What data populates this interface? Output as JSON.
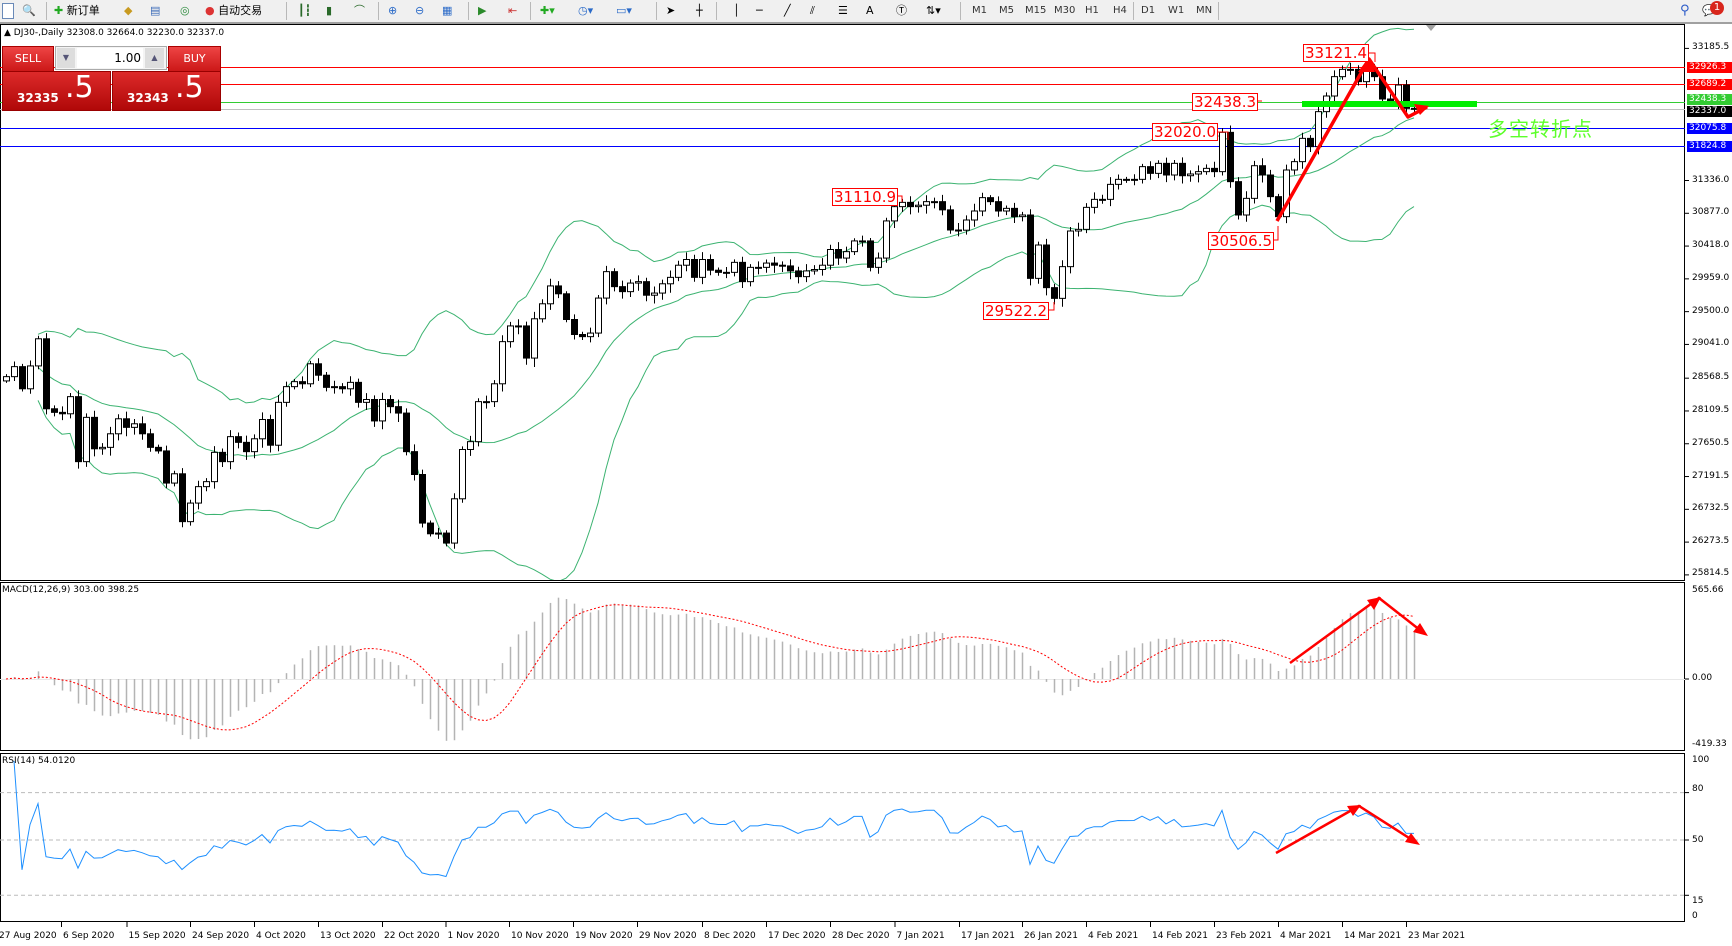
{
  "toolbar": {
    "new_order": "新订单",
    "auto_trade": "自动交易",
    "timeframes": [
      "M1",
      "M5",
      "M15",
      "M30",
      "H1",
      "H4",
      "D1",
      "W1",
      "MN"
    ],
    "notification_count": "1"
  },
  "chart_header": {
    "symbol": "DJ30-,Daily",
    "ohlc": "32308.0 32664.0 32230.0 32337.0"
  },
  "trade_panel": {
    "sell_label": "SELL",
    "buy_label": "BUY",
    "lot": "1.00",
    "sell_price_main": "32335",
    "sell_price_frac": ".5",
    "buy_price_main": "32343",
    "buy_price_frac": ".5"
  },
  "annotation_text": "多空转折点",
  "colors": {
    "bollinger": "#3cb371",
    "rsi": "#1e90ff",
    "macd_signal": "#ff0000",
    "macd_hist": "#b4b4b4",
    "arrow": "#ff0000",
    "pivot_bar": "#00ee00",
    "annotation": "#5cff2a"
  },
  "chart_data": {
    "type": "candlestick",
    "symbol": "DJ30-",
    "timeframe": "Daily",
    "ylim": [
      25814.5,
      33185.5
    ],
    "closes": [
      28590,
      28730,
      28420,
      28740,
      29120,
      28140,
      28090,
      28070,
      28310,
      27400,
      28020,
      27580,
      27600,
      27790,
      28000,
      27880,
      27930,
      27790,
      27600,
      27550,
      27100,
      27230,
      26560,
      26820,
      27050,
      27120,
      27530,
      27400,
      27750,
      27670,
      27540,
      27720,
      27990,
      27630,
      28230,
      28450,
      28520,
      28490,
      28770,
      28610,
      28440,
      28450,
      28420,
      28510,
      28230,
      28270,
      27970,
      28270,
      28170,
      28080,
      27540,
      27220,
      26540,
      26390,
      26400,
      26260,
      26880,
      27570,
      27680,
      28240,
      28240,
      28490,
      29080,
      29300,
      29300,
      28850,
      29400,
      29610,
      29860,
      29750,
      29390,
      29180,
      29150,
      29200,
      29690,
      30060,
      29850,
      29780,
      29900,
      29920,
      29730,
      29760,
      29890,
      29980,
      30150,
      30230,
      29980,
      30230,
      30080,
      30050,
      30050,
      30190,
      29920,
      30120,
      30120,
      30180,
      30150,
      30140,
      30070,
      29990,
      30070,
      30090,
      30150,
      30370,
      30250,
      30340,
      30490,
      30490,
      30120,
      30250,
      30770,
      30970,
      31030,
      30970,
      30990,
      31040,
      31040,
      30925,
      30643,
      30640,
      30783,
      30909,
      31096,
      31040,
      30909,
      30946,
      30830,
      30853,
      29966,
      30433,
      29836,
      29686,
      30130,
      30629,
      30652,
      30960,
      31072,
      31072,
      31282,
      31352,
      31350,
      31352,
      31530,
      31436,
      31576,
      31413,
      31576,
      31403,
      31427,
      31460,
      31506,
      31460,
      32010,
      31320,
      30853,
      31086,
      31543,
      31413,
      31110,
      30830,
      31483,
      31600,
      31926,
      31810,
      32300,
      32519,
      32790,
      32892,
      32892,
      32720,
      32906,
      32790,
      32477,
      32440,
      32673,
      32346,
      32337
    ],
    "price_ticks": [
      "33185.5",
      "31336.0",
      "30877.0",
      "30418.0",
      "29959.0",
      "29500.0",
      "29041.0",
      "28568.5",
      "28109.5",
      "27650.5",
      "27191.5",
      "26732.5",
      "26273.5",
      "25814.5"
    ],
    "date_labels": [
      "27 Aug 2020",
      "6 Sep 2020",
      "15 Sep 2020",
      "24 Sep 2020",
      "4 Oct 2020",
      "13 Oct 2020",
      "22 Oct 2020",
      "1 Nov 2020",
      "10 Nov 2020",
      "19 Nov 2020",
      "29 Nov 2020",
      "8 Dec 2020",
      "17 Dec 2020",
      "28 Dec 2020",
      "7 Jan 2021",
      "17 Jan 2021",
      "26 Jan 2021",
      "4 Feb 2021",
      "14 Feb 2021",
      "23 Feb 2021",
      "4 Mar 2021",
      "14 Mar 2021",
      "23 Mar 2021"
    ],
    "hlines": [
      {
        "value": "32926.3",
        "color": "#ff0000"
      },
      {
        "value": "32689.2",
        "color": "#ff0000"
      },
      {
        "value": "32438.3",
        "color": "#33cc33"
      },
      {
        "value": "32337.0",
        "color": "#000000"
      },
      {
        "value": "32075.8",
        "color": "#0000ff"
      },
      {
        "value": "31824.8",
        "color": "#0000ff"
      }
    ],
    "price_labels": [
      "33121.4",
      "32438.3",
      "32020.0",
      "31110.9",
      "30506.5",
      "29522.2"
    ],
    "indicators": {
      "bollinger": {
        "period": 20,
        "deviation": 2
      },
      "macd": {
        "label": "MACD(12,26,9) 303.00 398.25",
        "ticks": [
          "565.66",
          "0.00",
          "-419.33"
        ],
        "ylim": [
          -419.33,
          565.66
        ]
      },
      "rsi": {
        "label": "RSI(14) 54.0120",
        "ticks": [
          "100",
          "80",
          "50",
          "15",
          "0"
        ],
        "levels": [
          80,
          50,
          15
        ]
      }
    }
  }
}
